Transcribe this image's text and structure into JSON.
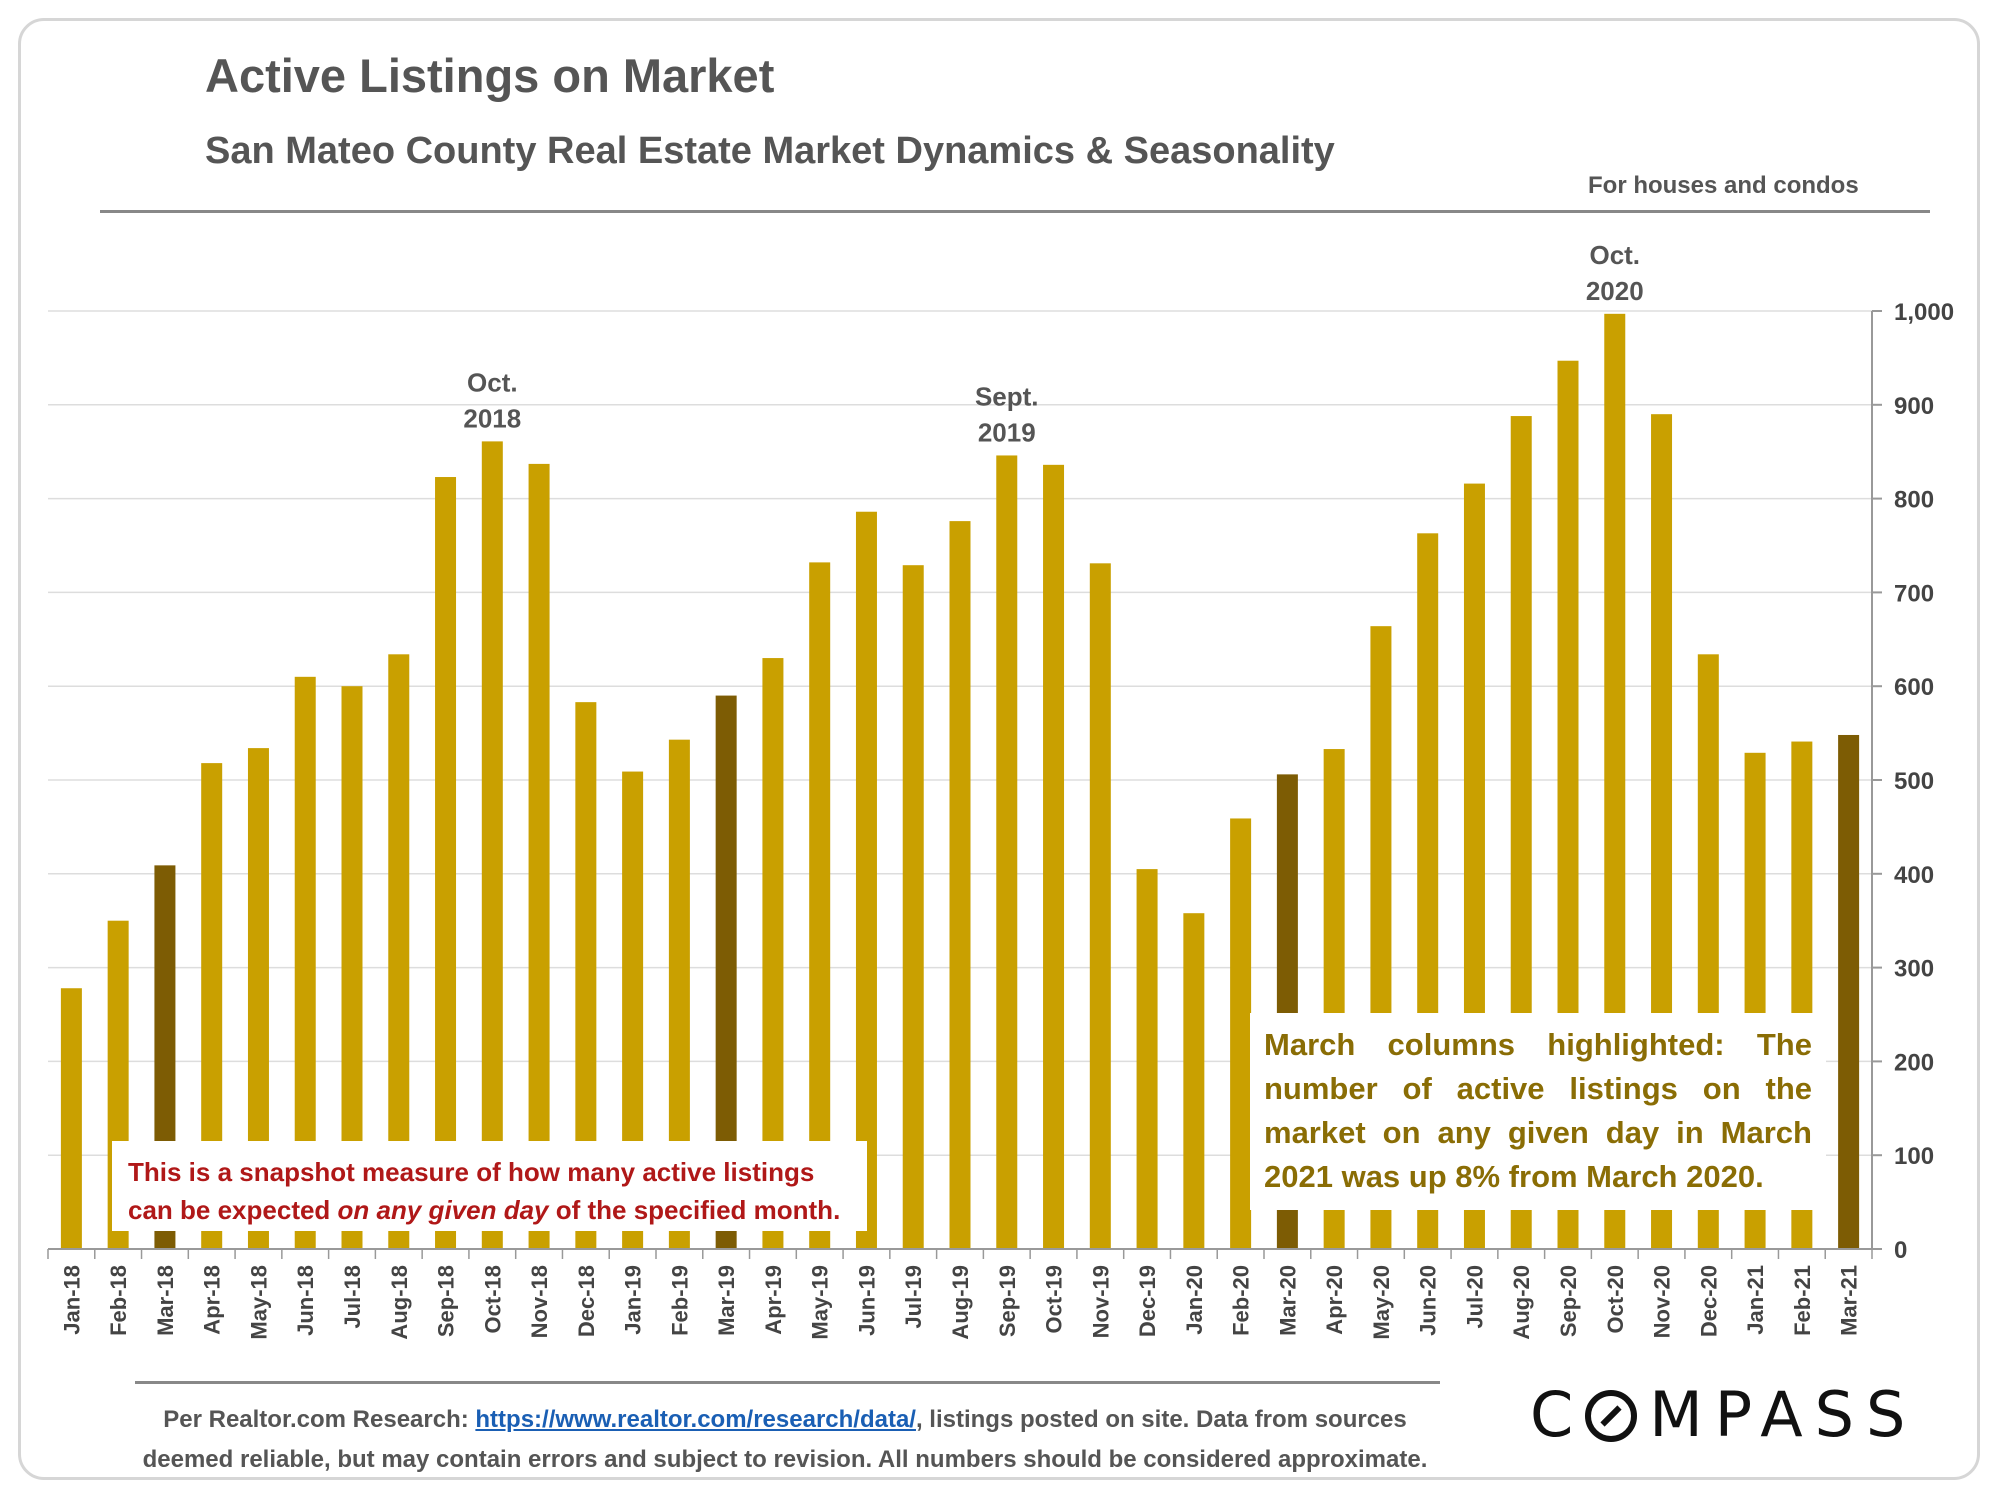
{
  "header": {
    "title": "Active Listings on Market",
    "subtitle": "San Mateo County Real Estate Market Dynamics & Seasonality",
    "note": "For houses and condos"
  },
  "annotations": {
    "left_box_line1": "This is a snapshot measure of how many active listings",
    "left_box_line2_a": "can be expected ",
    "left_box_line2_em": "on any given day",
    "left_box_line2_b": " of the specified month.",
    "right_box": "March columns highlighted: The number of active listings on the market on any given day in March 2021 was up 8% from March 2020.",
    "peaks": [
      {
        "line1": "Oct.",
        "line2": "2018",
        "category": "Oct-18"
      },
      {
        "line1": "Sept.",
        "line2": "2019",
        "category": "Sep-19"
      },
      {
        "line1": "Oct.",
        "line2": "2020",
        "category": "Oct-20"
      }
    ]
  },
  "footer": {
    "prefix": "Per Realtor.com Research: ",
    "link": "https://www.realtor.com/research/data/",
    "suffix": ", listings posted on site. Data from sources",
    "line2": "deemed reliable, but may contain errors and subject to revision. All numbers should be considered approximate."
  },
  "logo": {
    "text": "COMPASS"
  },
  "colors": {
    "bar": "#c9a000",
    "highlight": "#7d5c04",
    "grid": "#dddddd",
    "axis": "#999999",
    "text": "#444444"
  },
  "chart_data": {
    "type": "bar",
    "categories": [
      "Jan-18",
      "Feb-18",
      "Mar-18",
      "Apr-18",
      "May-18",
      "Jun-18",
      "Jul-18",
      "Aug-18",
      "Sep-18",
      "Oct-18",
      "Nov-18",
      "Dec-18",
      "Jan-19",
      "Feb-19",
      "Mar-19",
      "Apr-19",
      "May-19",
      "Jun-19",
      "Jul-19",
      "Aug-19",
      "Sep-19",
      "Oct-19",
      "Nov-19",
      "Dec-19",
      "Jan-20",
      "Feb-20",
      "Mar-20",
      "Apr-20",
      "May-20",
      "Jun-20",
      "Jul-20",
      "Aug-20",
      "Sep-20",
      "Oct-20",
      "Nov-20",
      "Dec-20",
      "Jan-21",
      "Feb-21",
      "Mar-21"
    ],
    "values": [
      278,
      350,
      409,
      518,
      534,
      610,
      600,
      634,
      823,
      861,
      837,
      583,
      509,
      543,
      590,
      630,
      732,
      786,
      729,
      776,
      846,
      836,
      731,
      405,
      358,
      459,
      506,
      533,
      664,
      763,
      816,
      888,
      947,
      997,
      890,
      634,
      529,
      541,
      548
    ],
    "highlighted": [
      "Mar-18",
      "Mar-19",
      "Mar-20",
      "Mar-21"
    ],
    "yticks": [
      "0",
      "100",
      "200",
      "300",
      "400",
      "500",
      "600",
      "700",
      "800",
      "900",
      "1,000"
    ],
    "ylim": [
      0,
      1000
    ],
    "y_axis_side": "right",
    "grid": true
  }
}
